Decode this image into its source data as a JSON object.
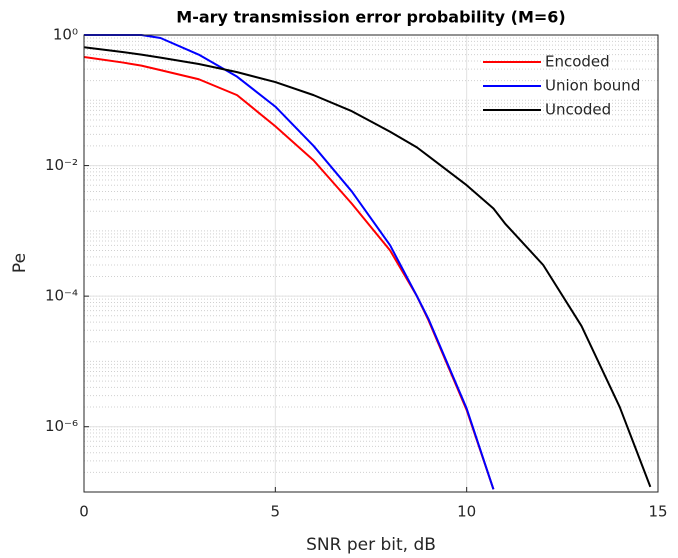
{
  "chart_data": {
    "type": "line",
    "title": "M-ary transmission error probability (M=6)",
    "xlabel": "SNR per bit, dB",
    "ylabel": "Pe",
    "x": [
      0,
      1,
      1.5,
      2,
      3,
      4,
      5,
      6,
      7,
      8,
      8.7,
      9,
      10,
      10.7,
      11,
      12,
      13,
      14,
      14.8
    ],
    "series": [
      {
        "name": "Encoded",
        "color": "#ff0000",
        "values": [
          0.46,
          0.38,
          0.34,
          0.29,
          0.21,
          0.12,
          0.04,
          0.012,
          0.0026,
          0.0005,
          0.0001,
          4.3e-05,
          1.8e-06,
          1.1e-07,
          null,
          null,
          null,
          null,
          null
        ]
      },
      {
        "name": "Union bound",
        "color": "#0000ff",
        "values": [
          1,
          1,
          1,
          0.9,
          0.5,
          0.23,
          0.08,
          0.02,
          0.004,
          0.0006,
          0.0001,
          4.5e-05,
          1.9e-06,
          1.1e-07,
          null,
          null,
          null,
          null,
          null
        ]
      },
      {
        "name": "Uncoded",
        "color": "#000000",
        "values": [
          0.65,
          0.55,
          0.5,
          0.45,
          0.36,
          0.27,
          0.19,
          0.12,
          0.068,
          0.033,
          0.019,
          0.014,
          0.005,
          0.0022,
          0.0013,
          0.0003,
          3.5e-05,
          2e-06,
          1.2e-07
        ]
      }
    ],
    "xlim": [
      0,
      15
    ],
    "xticks": [
      0,
      5,
      10,
      15
    ],
    "ylim": [
      1e-07,
      1
    ],
    "yticks": [
      {
        "value": 1,
        "label": "10⁰"
      },
      {
        "value": 0.01,
        "label": "10⁻²"
      },
      {
        "value": 0.0001,
        "label": "10⁻⁴"
      },
      {
        "value": 1e-06,
        "label": "10⁻⁶"
      }
    ],
    "ylog": true,
    "grid": true,
    "minor_grid": true,
    "legend": "northeast"
  }
}
